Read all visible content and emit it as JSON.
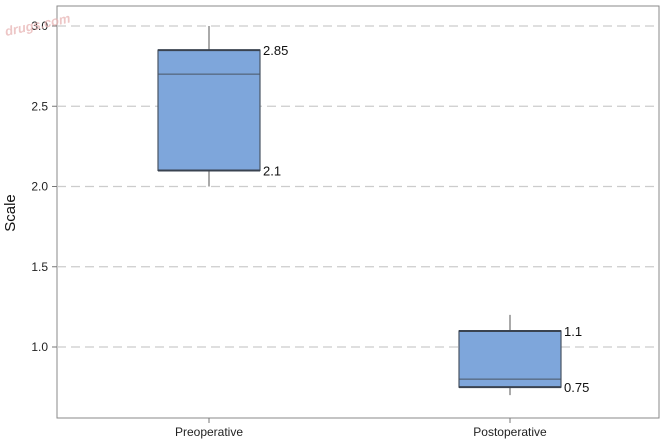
{
  "watermark": "drugs.com",
  "chart_data": {
    "type": "box",
    "title": "",
    "xlabel": "",
    "ylabel": "Scale",
    "ylim": [
      0.6,
      3.1
    ],
    "yticks": [
      1.0,
      1.5,
      2.0,
      2.5,
      3.0
    ],
    "ytick_labels": [
      "1.0",
      "1.5",
      "2.0",
      "2.5",
      "3.0"
    ],
    "grid": "horizontal-dashed",
    "box_color": "#7ea6db",
    "categories": [
      "Preoperative",
      "Postoperative"
    ],
    "boxes": [
      {
        "category": "Preoperative",
        "min": 2.0,
        "q1": 2.1,
        "median": 2.7,
        "q3": 2.85,
        "max": 3.0,
        "labels": {
          "q3": "2.85",
          "q1": "2.1"
        }
      },
      {
        "category": "Postoperative",
        "min": 0.7,
        "q1": 0.75,
        "median": 0.8,
        "q3": 1.1,
        "max": 1.2,
        "labels": {
          "q3": "1.1",
          "q1": "0.75"
        }
      }
    ]
  }
}
